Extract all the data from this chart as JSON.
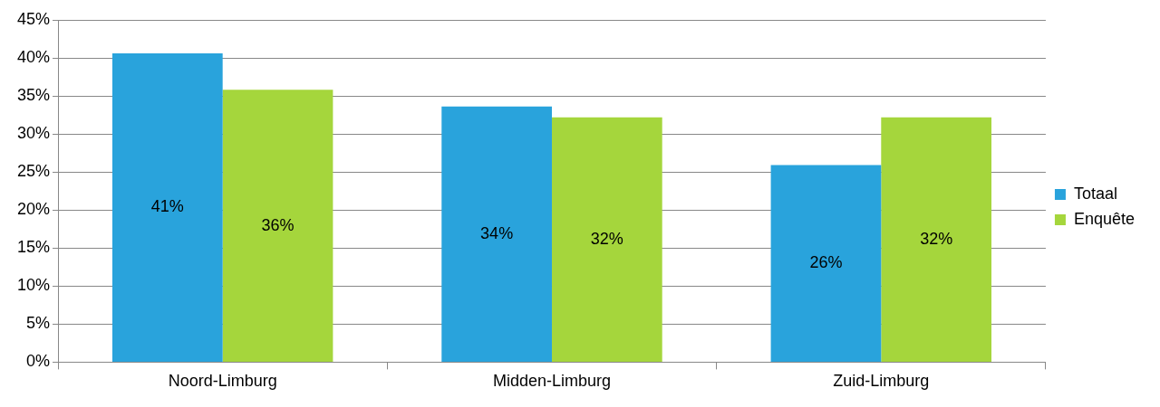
{
  "chart_data": {
    "type": "bar",
    "categories": [
      "Noord-Limburg",
      "Midden-Limburg",
      "Zuid-Limburg"
    ],
    "series": [
      {
        "name": "Totaal",
        "color": "#29a3dc",
        "values": [
          40.6,
          33.6,
          25.9
        ],
        "value_labels": [
          "41%",
          "34%",
          "26%"
        ]
      },
      {
        "name": "Enquête",
        "color": "#a5d63c",
        "values": [
          35.8,
          32.2,
          32.2
        ],
        "value_labels": [
          "36%",
          "32%",
          "32%"
        ]
      }
    ],
    "ylim": [
      0,
      45
    ],
    "yticks": [
      {
        "value": 0,
        "label": "0%"
      },
      {
        "value": 5,
        "label": "5%"
      },
      {
        "value": 10,
        "label": "10%"
      },
      {
        "value": 15,
        "label": "15%"
      },
      {
        "value": 20,
        "label": "20%"
      },
      {
        "value": 25,
        "label": "25%"
      },
      {
        "value": 30,
        "label": "30%"
      },
      {
        "value": 35,
        "label": "35%"
      },
      {
        "value": 40,
        "label": "40%"
      },
      {
        "value": 45,
        "label": "45%"
      }
    ],
    "grid": "y",
    "legend": "right"
  }
}
